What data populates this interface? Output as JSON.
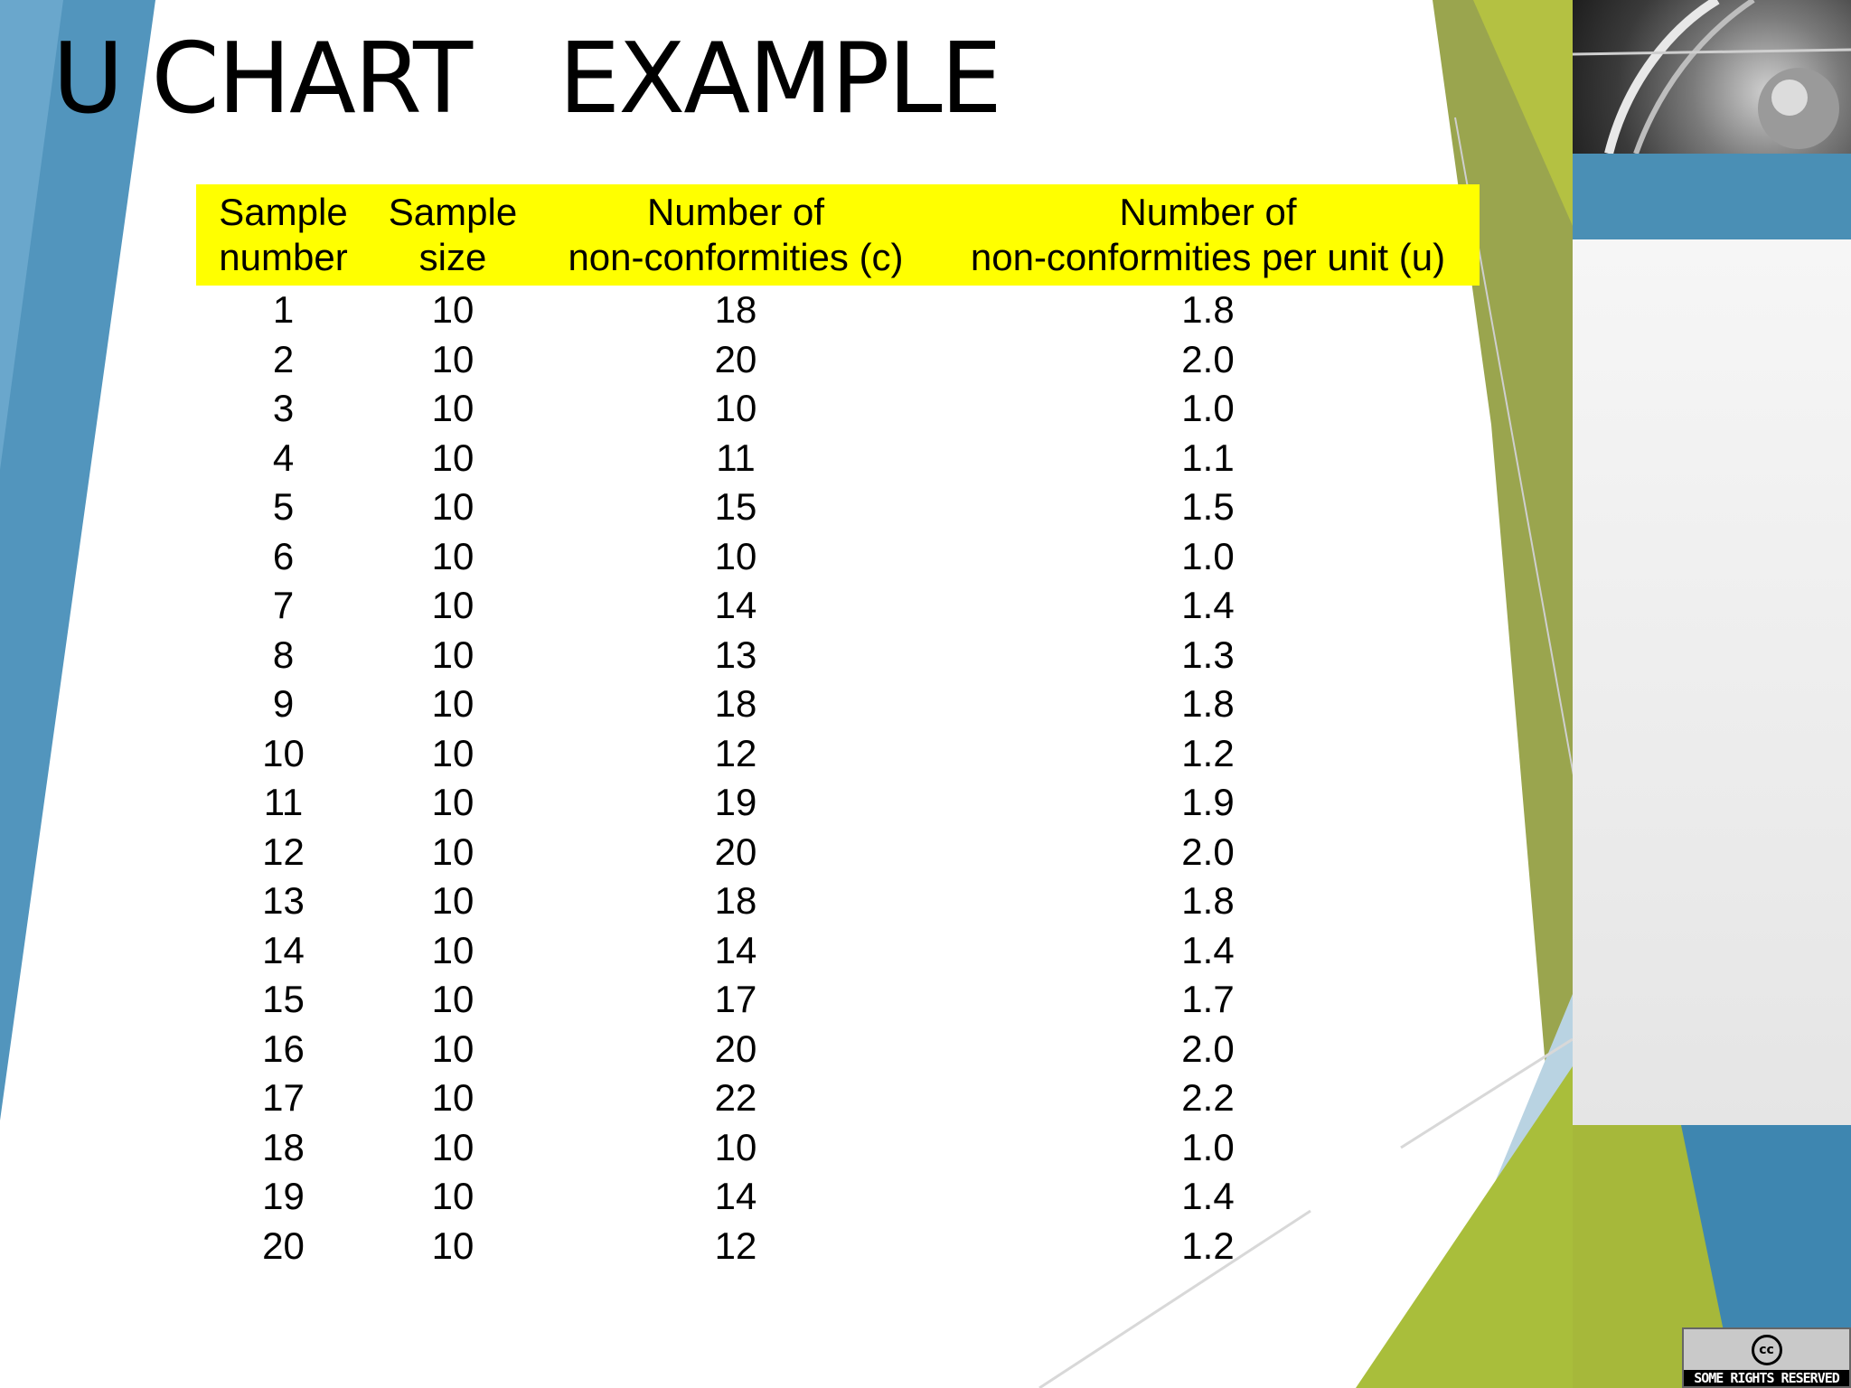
{
  "title": "U CHART   EXAMPLE",
  "table": {
    "headers": [
      [
        "Sample",
        "number"
      ],
      [
        "Sample",
        "size"
      ],
      [
        "Number of",
        "non-conformities (c)"
      ],
      [
        "Number of",
        "non-conformities per unit (u)"
      ]
    ],
    "rows": [
      [
        "1",
        "10",
        "18",
        "1.8"
      ],
      [
        "2",
        "10",
        "20",
        "2.0"
      ],
      [
        "3",
        "10",
        "10",
        "1.0"
      ],
      [
        "4",
        "10",
        "11",
        "1.1"
      ],
      [
        "5",
        "10",
        "15",
        "1.5"
      ],
      [
        "6",
        "10",
        "10",
        "1.0"
      ],
      [
        "7",
        "10",
        "14",
        "1.4"
      ],
      [
        "8",
        "10",
        "13",
        "1.3"
      ],
      [
        "9",
        "10",
        "18",
        "1.8"
      ],
      [
        "10",
        "10",
        "12",
        "1.2"
      ],
      [
        "11",
        "10",
        "19",
        "1.9"
      ],
      [
        "12",
        "10",
        "20",
        "2.0"
      ],
      [
        "13",
        "10",
        "18",
        "1.8"
      ],
      [
        "14",
        "10",
        "14",
        "1.4"
      ],
      [
        "15",
        "10",
        "17",
        "1.7"
      ],
      [
        "16",
        "10",
        "20",
        "2.0"
      ],
      [
        "17",
        "10",
        "22",
        "2.2"
      ],
      [
        "18",
        "10",
        "10",
        "1.0"
      ],
      [
        "19",
        "10",
        "14",
        "1.4"
      ],
      [
        "20",
        "10",
        "12",
        "1.2"
      ]
    ]
  },
  "license_badge": {
    "symbol": "cc",
    "text": "SOME RIGHTS RESERVED"
  },
  "colors": {
    "header_highlight": "#ffff00",
    "accent_blue": "#4f8db5",
    "accent_green": "#a7b93a",
    "accent_olive": "#8f9a47"
  },
  "icons": [
    "creative-commons-icon"
  ]
}
